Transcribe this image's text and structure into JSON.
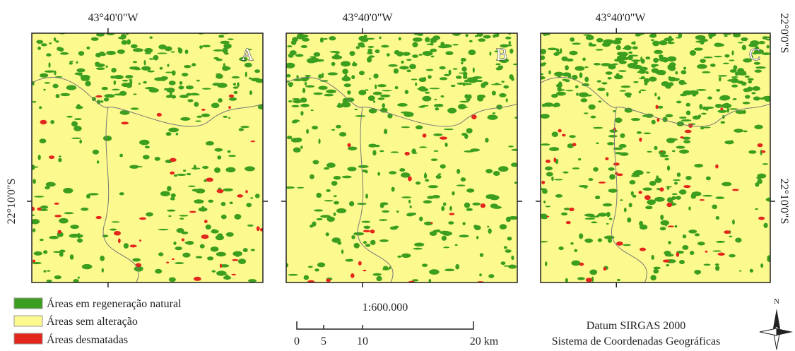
{
  "panels": [
    {
      "label": "A",
      "top_label": "43°40'0\"W"
    },
    {
      "label": "B",
      "top_label": "43°40'0\"W"
    },
    {
      "label": "C",
      "top_label": "43°40'0\"W"
    }
  ],
  "left_labels": [
    "22°10'0\"S"
  ],
  "right_labels": [
    "22°0'0\"S",
    "22°10'0\"S"
  ],
  "legend": [
    {
      "label": "Áreas em regeneração natural",
      "color": "#3c9e1e"
    },
    {
      "label": "Áreas sem alteração",
      "color": "#fcfa8e"
    },
    {
      "label": "Áreas desmatadas",
      "color": "#e3261c"
    }
  ],
  "scale": {
    "ratio": "1:600.000",
    "labels": [
      "0",
      "5",
      "10",
      "20 km"
    ]
  },
  "datum": [
    "Datum SIRGAS 2000",
    "Sistema de Coordenadas Geográficas"
  ],
  "north": "N"
}
